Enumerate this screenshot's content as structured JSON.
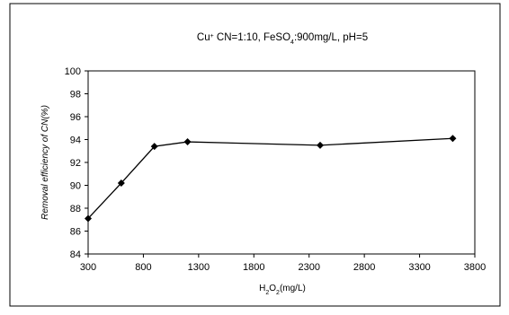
{
  "chart_data": {
    "type": "line",
    "title_parts": {
      "p1": "Cu",
      "p1_sup": "+",
      "p2": " CN=1:10, FeSO",
      "p2_sub": "4",
      "p3": ":900mg/L, pH=5"
    },
    "xlabel_parts": {
      "p1": "H",
      "p1_sub": "2",
      "p2": "O",
      "p2_sub": "2",
      "p3": "(mg/L)"
    },
    "ylabel": "Removal efficiency of CN(%)",
    "x": [
      300,
      600,
      900,
      1200,
      2400,
      3600
    ],
    "y": [
      87.1,
      90.2,
      93.4,
      93.8,
      93.5,
      94.1
    ],
    "xlim": [
      300,
      3800
    ],
    "ylim": [
      84,
      100
    ],
    "xticks": [
      300,
      800,
      1300,
      1800,
      2300,
      2800,
      3300,
      3800
    ],
    "yticks": [
      84,
      86,
      88,
      90,
      92,
      94,
      96,
      98,
      100
    ],
    "grid": false,
    "marker": "diamond",
    "line_color": "#000000"
  }
}
